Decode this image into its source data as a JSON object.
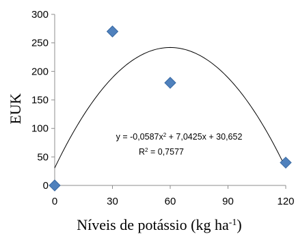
{
  "chart_data": {
    "type": "scatter",
    "xlabel": "Níveis de potássio (kg ha",
    "xlabel_sup": "-1",
    "xlabel_tail": ")",
    "ylabel": "EUK",
    "xlim": [
      0,
      120
    ],
    "ylim": [
      0,
      300
    ],
    "x_ticks": [
      0,
      30,
      60,
      90,
      120
    ],
    "y_ticks": [
      0,
      50,
      100,
      150,
      200,
      250,
      300
    ],
    "x_tick_labels": [
      "0",
      "30",
      "60",
      "90",
      "120"
    ],
    "y_tick_labels": [
      "0",
      "50",
      "100",
      "150",
      "200",
      "250",
      "300"
    ],
    "grid": false,
    "points": [
      {
        "x": 0,
        "y": 0
      },
      {
        "x": 30,
        "y": 270
      },
      {
        "x": 60,
        "y": 180
      },
      {
        "x": 120,
        "y": 40
      }
    ],
    "trendline": {
      "type": "polynomial",
      "coefficients": {
        "a": -0.0587,
        "b": 7.0425,
        "c": 30.652
      },
      "equation_parts": [
        "y = -0,0587x",
        "2",
        " + 7,0425x + 30,652"
      ],
      "r2_parts": [
        "R",
        "2",
        " = 0,7577"
      ]
    },
    "colors": {
      "marker": "#4f81bd",
      "marker_stroke": "#3a6aa3",
      "trendline": "#000000",
      "axis": "#8c8c8c"
    }
  }
}
